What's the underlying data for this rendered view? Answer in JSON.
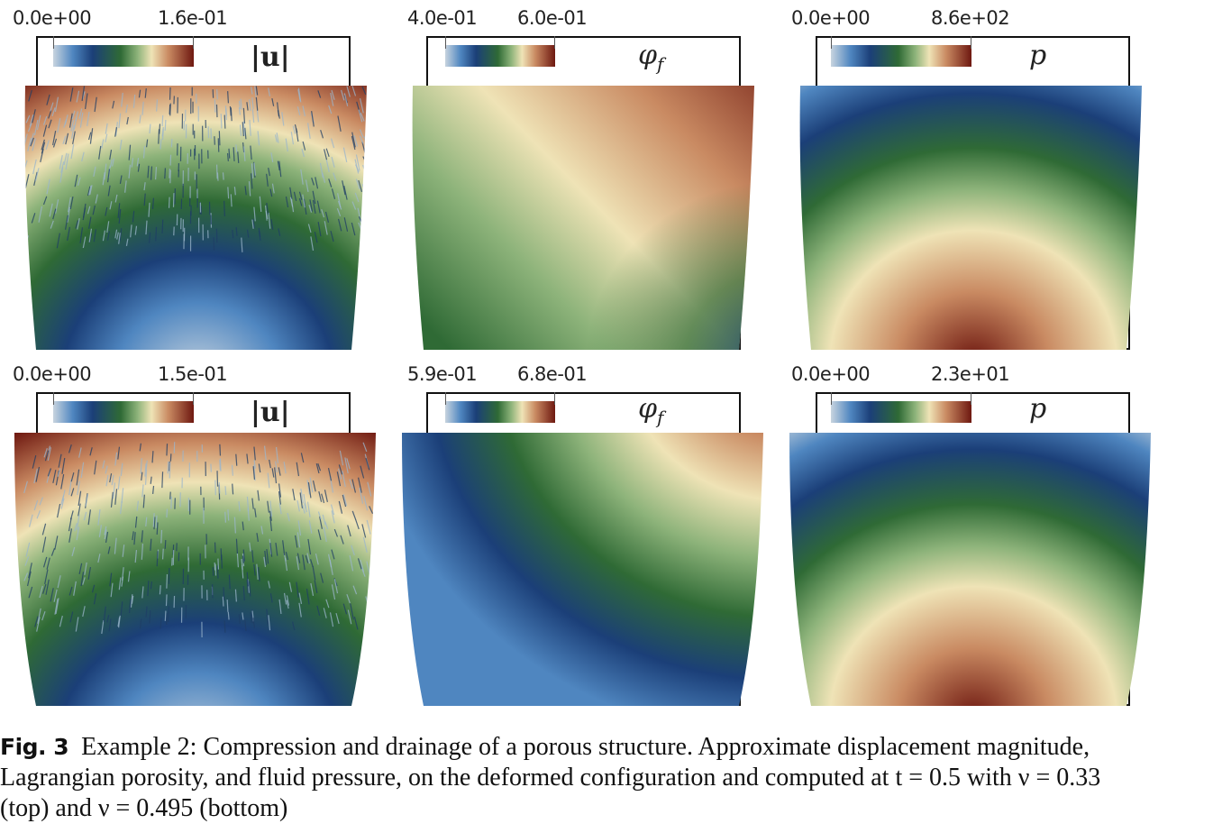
{
  "panels": [
    {
      "id": "top-u",
      "min": "0.0e+00",
      "max": "1.6e-01",
      "quantity": "|u|",
      "shape": "top",
      "field": "u-top"
    },
    {
      "id": "top-phi",
      "min": "4.0e-01",
      "max": "6.0e-01",
      "quantity": "φ_f",
      "shape": "top",
      "field": "phi-top"
    },
    {
      "id": "top-p",
      "min": "0.0e+00",
      "max": "8.6e+02",
      "quantity": "p",
      "shape": "top",
      "field": "p"
    },
    {
      "id": "bot-u",
      "min": "0.0e+00",
      "max": "1.5e-01",
      "quantity": "|u|",
      "shape": "bottom",
      "field": "u-bot"
    },
    {
      "id": "bot-phi",
      "min": "5.9e-01",
      "max": "6.8e-01",
      "quantity": "φ_f",
      "shape": "bottom",
      "field": "phi-bot"
    },
    {
      "id": "bot-p",
      "min": "0.0e+00",
      "max": "2.3e+01",
      "quantity": "p",
      "shape": "bottom",
      "field": "p"
    }
  ],
  "colormap": [
    "#c8d4df",
    "#4f86c0",
    "#1b3f78",
    "#2f6a35",
    "#8db37a",
    "#efe3b6",
    "#c98a62",
    "#6e1810"
  ],
  "labels": {
    "u": "|u|",
    "phi": "φ",
    "phi_sub": "f",
    "p": "p"
  },
  "caption": {
    "fig_label": "Fig. 3",
    "line1": "Example 2: Compression and drainage of a porous structure. Approximate displacement magnitude,",
    "line2": "Lagrangian porosity, and fluid pressure, on the deformed configuration and computed at t = 0.5 with ν = 0.33",
    "line3": "(top) and ν = 0.495 (bottom)"
  }
}
